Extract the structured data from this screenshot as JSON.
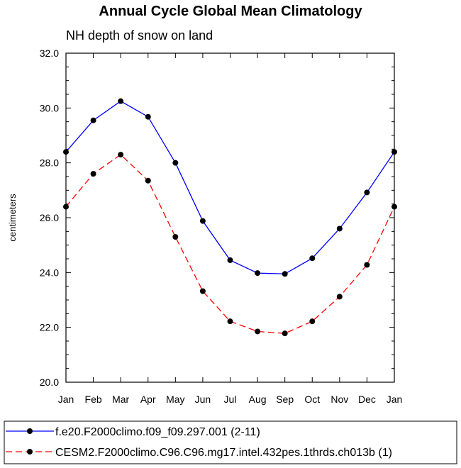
{
  "chart_data": {
    "type": "line",
    "title": "Annual Cycle Global Mean Climatology",
    "subtitle": "NH depth of snow on land",
    "xlabel": "",
    "ylabel": "centimeters",
    "categories": [
      "Jan",
      "Feb",
      "Mar",
      "Apr",
      "May",
      "Jun",
      "Jul",
      "Aug",
      "Sep",
      "Oct",
      "Nov",
      "Dec",
      "Jan"
    ],
    "ylim": [
      20.0,
      32.0
    ],
    "yticks": [
      "20.0",
      "22.0",
      "24.0",
      "26.0",
      "28.0",
      "30.0",
      "32.0"
    ],
    "grid": false,
    "legend_position": "bottom",
    "series": [
      {
        "name": "f.e20.F2000climo.f09_f09.297.001 (2-11)",
        "color": "#0000ff",
        "dash": "solid",
        "values": [
          28.4,
          29.55,
          30.25,
          29.68,
          28.0,
          25.88,
          24.45,
          23.98,
          23.95,
          24.52,
          25.6,
          26.92,
          28.4
        ]
      },
      {
        "name": "CESM2.F2000climo.C96.C96.mg17.intel.432pes.1thrds.ch013b (1)",
        "color": "#ff0000",
        "dash": "dashed",
        "values": [
          26.4,
          27.6,
          28.3,
          27.35,
          25.3,
          23.32,
          22.22,
          21.85,
          21.78,
          22.22,
          23.12,
          24.28,
          26.4
        ]
      }
    ]
  }
}
